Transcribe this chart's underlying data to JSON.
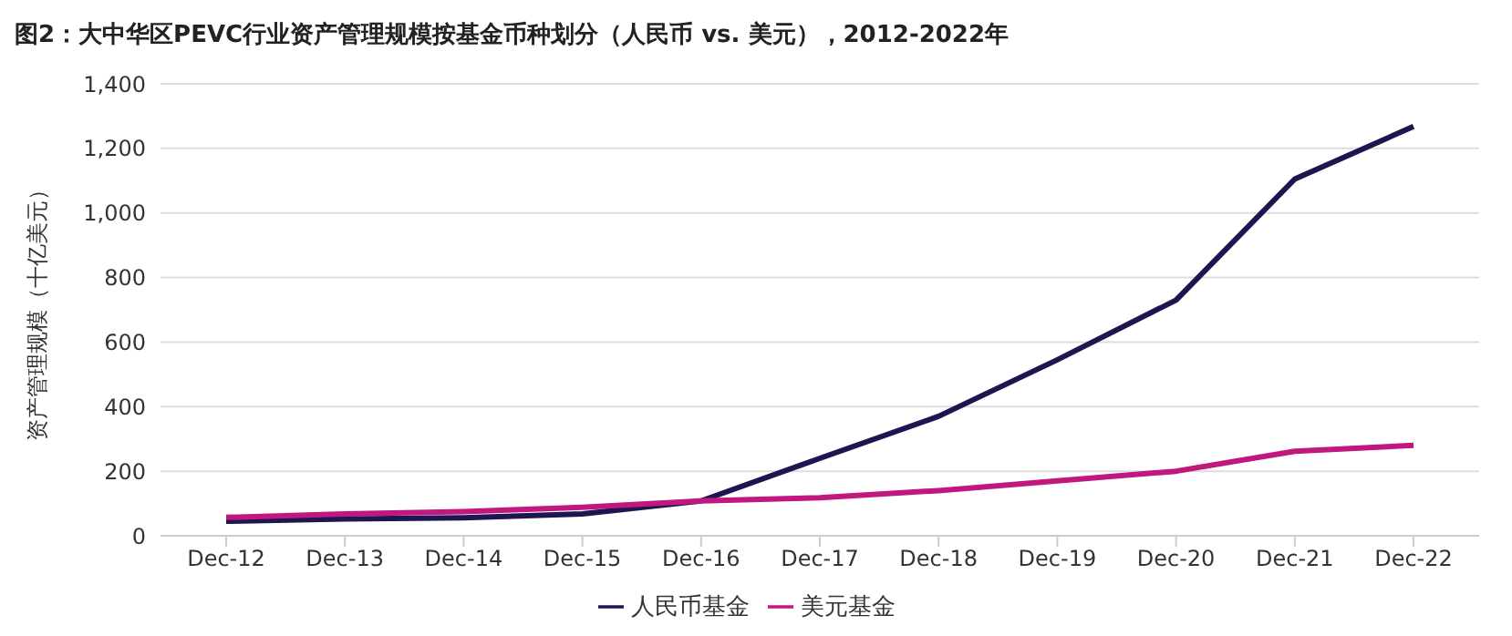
{
  "chart_data": {
    "type": "line",
    "title": "图2：大中华区PEVC行业资产管理规模按基金币种划分（人民币 vs. 美元），2012-2022年",
    "ylabel": "资产管理规模（十亿美元）",
    "categories": [
      "Dec-12",
      "Dec-13",
      "Dec-14",
      "Dec-15",
      "Dec-16",
      "Dec-17",
      "Dec-18",
      "Dec-19",
      "Dec-20",
      "Dec-21",
      "Dec-22"
    ],
    "series": [
      {
        "name": "人民币基金",
        "color": "#1e1650",
        "values": [
          45,
          52,
          56,
          68,
          108,
          240,
          370,
          545,
          730,
          1105,
          1268
        ]
      },
      {
        "name": "美元基金",
        "color": "#c0187f",
        "values": [
          57,
          68,
          75,
          88,
          108,
          118,
          140,
          170,
          200,
          262,
          280
        ]
      }
    ],
    "ylim": [
      0,
      1400
    ],
    "yticks": [
      {
        "value": 0,
        "label": "0"
      },
      {
        "value": 200,
        "label": "200"
      },
      {
        "value": 400,
        "label": "400"
      },
      {
        "value": 600,
        "label": "600"
      },
      {
        "value": 800,
        "label": "800"
      },
      {
        "value": 1000,
        "label": "1,000"
      },
      {
        "value": 1200,
        "label": "1,200"
      },
      {
        "value": 1400,
        "label": "1,400"
      }
    ],
    "grid": "y",
    "legend": "bottom",
    "marker": "none",
    "line_style": "solid"
  }
}
